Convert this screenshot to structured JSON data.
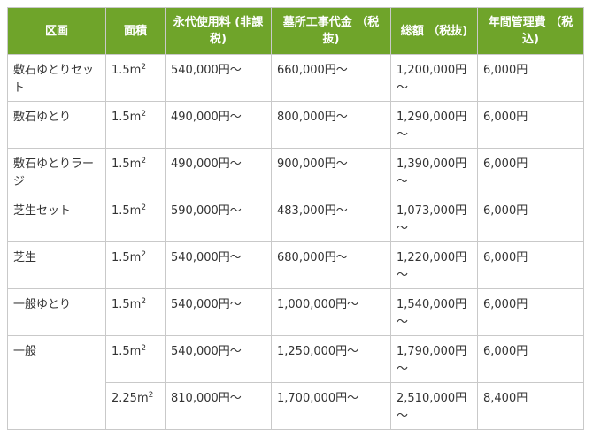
{
  "table": {
    "headers": [
      {
        "label": "区画"
      },
      {
        "label": "面積"
      },
      {
        "label": "永代使用料 (非課税)"
      },
      {
        "label": "墓所工事代金 （税抜)"
      },
      {
        "label": "総額 （税抜)"
      },
      {
        "label": "年間管理費 （税込)"
      }
    ],
    "rows": [
      {
        "name": "敷石ゆとりセット",
        "area": "1.5m",
        "area_sup": "2",
        "perpetual_fee": "540,000円～",
        "construction_fee": "660,000円～",
        "total": "1,200,000円～",
        "annual_fee": "6,000円"
      },
      {
        "name": "敷石ゆとり",
        "area": "1.5m",
        "area_sup": "2",
        "perpetual_fee": "490,000円～",
        "construction_fee": "800,000円～",
        "total": "1,290,000円～",
        "annual_fee": "6,000円"
      },
      {
        "name": "敷石ゆとりラージ",
        "area": "1.5m",
        "area_sup": "2",
        "perpetual_fee": "490,000円～",
        "construction_fee": "900,000円～",
        "total": "1,390,000円～",
        "annual_fee": "6,000円"
      },
      {
        "name": "芝生セット",
        "area": "1.5m",
        "area_sup": "2",
        "perpetual_fee": "590,000円～",
        "construction_fee": "483,000円～",
        "total": "1,073,000円～",
        "annual_fee": "6,000円"
      },
      {
        "name": "芝生",
        "area": "1.5m",
        "area_sup": "2",
        "perpetual_fee": "540,000円～",
        "construction_fee": "680,000円～",
        "total": "1,220,000円～",
        "annual_fee": "6,000円"
      },
      {
        "name": "一般ゆとり",
        "area": "1.5m",
        "area_sup": "2",
        "perpetual_fee": "540,000円～",
        "construction_fee": "1,000,000円～",
        "total": "1,540,000円～",
        "annual_fee": "6,000円"
      },
      {
        "name": "一般",
        "area": "1.5m",
        "area_sup": "2",
        "perpetual_fee": "540,000円～",
        "construction_fee": "1,250,000円～",
        "total": "1,790,000円～",
        "annual_fee": "6,000円"
      },
      {
        "name": "",
        "area": "2.25m",
        "area_sup": "2",
        "perpetual_fee": "810,000円～",
        "construction_fee": "1,700,000円～",
        "total": "2,510,000円～",
        "annual_fee": "8,400円"
      }
    ]
  },
  "colors": {
    "header_bg": "#6fa42a",
    "header_text": "#ffffff",
    "border": "#c9c9c9",
    "body_text": "#333333"
  }
}
